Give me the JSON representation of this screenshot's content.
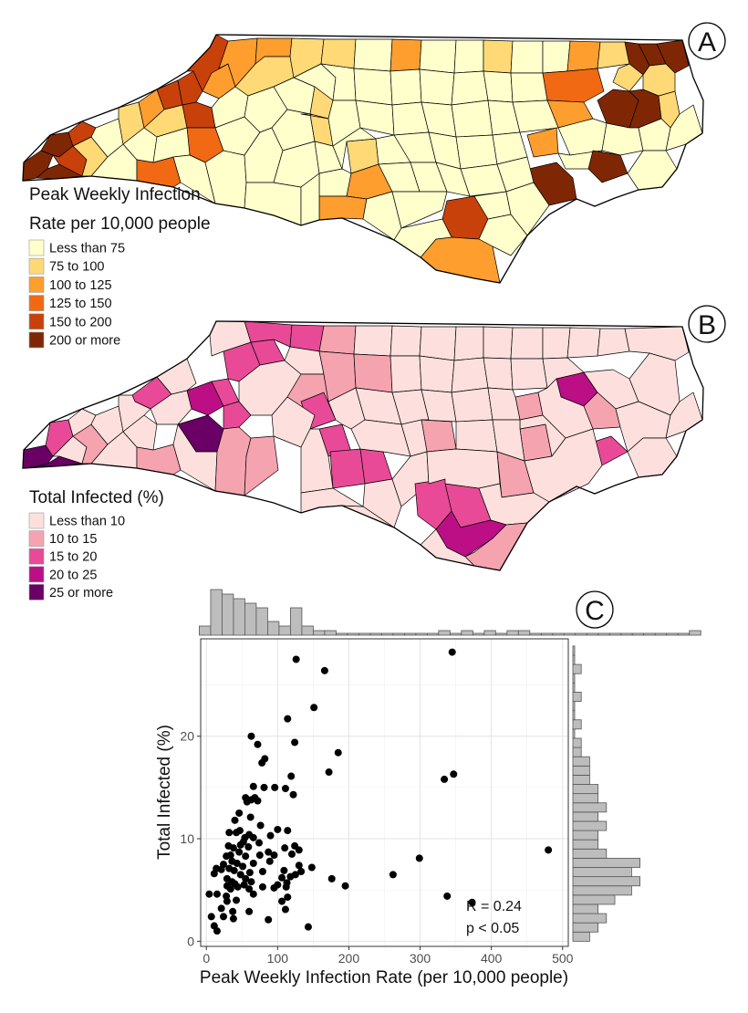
{
  "panels": {
    "a": {
      "letter": "A",
      "legend_title_line1": "Peak Weekly Infection",
      "legend_title_line2": "Rate per 10,000 people",
      "legend": [
        {
          "label": "Less than 75",
          "color": "#ffffcc"
        },
        {
          "label": "75 to 100",
          "color": "#fed976"
        },
        {
          "label": "100 to 125",
          "color": "#fd9e2e"
        },
        {
          "label": "125 to 150",
          "color": "#f16913"
        },
        {
          "label": "150 to 200",
          "color": "#c8410b"
        },
        {
          "label": "200 or more",
          "color": "#7f2704"
        }
      ]
    },
    "b": {
      "letter": "B",
      "legend_title": "Total Infected (%)",
      "legend": [
        {
          "label": "Less than 10",
          "color": "#fde0dd"
        },
        {
          "label": "10 to 15",
          "color": "#f6a3b0"
        },
        {
          "label": "15 to 20",
          "color": "#e84a98"
        },
        {
          "label": "20 to 25",
          "color": "#bc0f86"
        },
        {
          "label": "25 or more",
          "color": "#6a0066"
        }
      ]
    },
    "c": {
      "letter": "C",
      "annotation_r": "R = 0.24",
      "annotation_p": "p < 0.05"
    }
  },
  "chart_data": {
    "type": "scatter",
    "xlabel": "Peak Weekly Infection Rate (per 10,000 people)",
    "ylabel": "Total Infected (%)",
    "xlim": [
      -8,
      508
    ],
    "ylim": [
      -0.5,
      29.5
    ],
    "xticks": [
      0,
      100,
      200,
      300,
      400,
      500
    ],
    "yticks": [
      0,
      10,
      20
    ],
    "grid": true,
    "points": [
      [
        126,
        27.5
      ],
      [
        345,
        28.2
      ],
      [
        166,
        26.4
      ],
      [
        151,
        22.8
      ],
      [
        114,
        21.7
      ],
      [
        185,
        18.4
      ],
      [
        124,
        19.4
      ],
      [
        63,
        20
      ],
      [
        72,
        19.2
      ],
      [
        82,
        17.8
      ],
      [
        78,
        17.4
      ],
      [
        172,
        16.5
      ],
      [
        347,
        16.3
      ],
      [
        334,
        15.8
      ],
      [
        119,
        16.1
      ],
      [
        96,
        15
      ],
      [
        66,
        15.1
      ],
      [
        81,
        15
      ],
      [
        111,
        14.9
      ],
      [
        68,
        14
      ],
      [
        72,
        13.7
      ],
      [
        55,
        14
      ],
      [
        57,
        13.6
      ],
      [
        63,
        13.8
      ],
      [
        122,
        14.3
      ],
      [
        46,
        12.5
      ],
      [
        40,
        11.8
      ],
      [
        62,
        12.1
      ],
      [
        76,
        11.3
      ],
      [
        47,
        10.8
      ],
      [
        32,
        10.6
      ],
      [
        42,
        10.6
      ],
      [
        60,
        10.4
      ],
      [
        54,
        10.1
      ],
      [
        66,
        10.1
      ],
      [
        90,
        10.3
      ],
      [
        100,
        10.9
      ],
      [
        114,
        10.8
      ],
      [
        52,
        9.7
      ],
      [
        31,
        9.3
      ],
      [
        38,
        9.1
      ],
      [
        48,
        9.4
      ],
      [
        59,
        9.2
      ],
      [
        74,
        9.6
      ],
      [
        110,
        9.1
      ],
      [
        124,
        9.3
      ],
      [
        130,
        8.9
      ],
      [
        480,
        8.9
      ],
      [
        28,
        8.3
      ],
      [
        34,
        8.4
      ],
      [
        46,
        8.7
      ],
      [
        55,
        8.3
      ],
      [
        75,
        8.4
      ],
      [
        87,
        8.7
      ],
      [
        95,
        8.4
      ],
      [
        120,
        8.5
      ],
      [
        299,
        8.1
      ],
      [
        14,
        7.1
      ],
      [
        24,
        7.5
      ],
      [
        36,
        7.8
      ],
      [
        43,
        7.6
      ],
      [
        51,
        7.3
      ],
      [
        66,
        7.6
      ],
      [
        89,
        7.8
      ],
      [
        130,
        7.4
      ],
      [
        148,
        7.2
      ],
      [
        21,
        7
      ],
      [
        32,
        7.1
      ],
      [
        39,
        6.9
      ],
      [
        61,
        6.7
      ],
      [
        79,
        6.8
      ],
      [
        109,
        6.9
      ],
      [
        125,
        6.5
      ],
      [
        133,
        6.8
      ],
      [
        262,
        6.5
      ],
      [
        11,
        6.6
      ],
      [
        29,
        6.1
      ],
      [
        48,
        6.5
      ],
      [
        55,
        6.1
      ],
      [
        106,
        6.2
      ],
      [
        118,
        6.3
      ],
      [
        176,
        6.1
      ],
      [
        36,
        5.8
      ],
      [
        40,
        5.6
      ],
      [
        53,
        5.5
      ],
      [
        63,
        5.8
      ],
      [
        100,
        5.5
      ],
      [
        113,
        5.7
      ],
      [
        195,
        5.4
      ],
      [
        29,
        5.4
      ],
      [
        34,
        5.1
      ],
      [
        44,
        5.3
      ],
      [
        60,
        5.1
      ],
      [
        79,
        5.3
      ],
      [
        95,
        5.2
      ],
      [
        112,
        5.3
      ],
      [
        4,
        4.6
      ],
      [
        15,
        4.6
      ],
      [
        28,
        4.4
      ],
      [
        66,
        4.6
      ],
      [
        114,
        4.3
      ],
      [
        338,
        4.4
      ],
      [
        42,
        4
      ],
      [
        29,
        3.9
      ],
      [
        106,
        3.9
      ],
      [
        373,
        3.8
      ],
      [
        21,
        3.2
      ],
      [
        37,
        2.9
      ],
      [
        60,
        2.9
      ],
      [
        111,
        3.1
      ],
      [
        24,
        2.4
      ],
      [
        7,
        2.4
      ],
      [
        38,
        2.2
      ],
      [
        87,
        2.1
      ],
      [
        11,
        1.5
      ],
      [
        15,
        1
      ],
      [
        143,
        1.4
      ]
    ],
    "x_hist": {
      "bin_start": -10,
      "bin_width": 16,
      "counts": [
        2,
        10,
        9,
        8,
        7,
        6,
        3,
        2,
        6,
        2,
        1,
        1,
        0,
        0,
        0,
        0,
        0,
        0,
        0,
        0,
        0,
        1,
        0,
        1,
        0,
        1,
        0,
        1,
        1,
        0,
        0,
        0,
        0,
        0,
        0,
        0,
        0,
        0,
        0,
        0,
        0,
        0,
        0,
        1
      ]
    },
    "y_hist": {
      "bin_start": 0,
      "bin_width": 0.9,
      "counts": [
        2,
        3,
        4,
        3,
        5,
        7,
        8,
        7,
        8,
        4,
        3,
        3,
        4,
        3,
        4,
        3,
        3,
        2,
        2,
        2,
        1,
        1,
        0,
        1,
        0,
        0,
        1,
        0,
        0,
        1,
        0,
        0
      ]
    }
  }
}
